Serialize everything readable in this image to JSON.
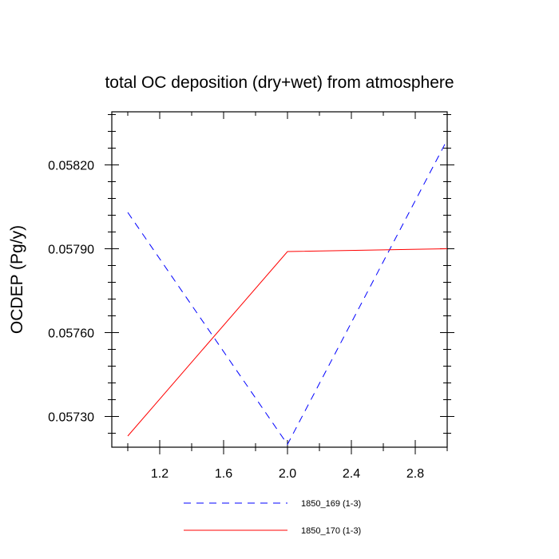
{
  "chart_data": {
    "type": "line",
    "title": "total OC deposition (dry+wet) from atmosphere",
    "xlabel": "",
    "ylabel": "OCDEP  (Pg/y)",
    "xlim": [
      0.9,
      3.0
    ],
    "ylim": [
      0.05719,
      0.05839
    ],
    "x_ticks": [
      1.2,
      1.6,
      2.0,
      2.4,
      2.8
    ],
    "x_tick_labels": [
      "1.2",
      "1.6",
      "2.0",
      "2.4",
      "2.8"
    ],
    "x_minor_ticks": [
      1.0,
      1.4,
      1.8,
      2.2,
      2.6,
      3.0
    ],
    "y_ticks": [
      0.0573,
      0.0576,
      0.0579,
      0.0582
    ],
    "y_tick_labels": [
      "0.05730",
      "0.05760",
      "0.05790",
      "0.05820"
    ],
    "y_minor_ticks": [
      0.05724,
      0.05736,
      0.05742,
      0.05748,
      0.05754,
      0.05766,
      0.05772,
      0.05778,
      0.05784,
      0.05796,
      0.05802,
      0.05808,
      0.05814,
      0.05826,
      0.05832,
      0.05838
    ],
    "grid": false,
    "legend_position": "bottom",
    "series": [
      {
        "name": "1850_169 (1-3)",
        "x": [
          1,
          2,
          3
        ],
        "y": [
          0.05803,
          0.0572,
          0.05829
        ],
        "color": "#0000ff",
        "dash": "dashed"
      },
      {
        "name": "1850_170 (1-3)",
        "x": [
          1,
          2,
          3
        ],
        "y": [
          0.05723,
          0.05789,
          0.0579
        ],
        "color": "#ff0000",
        "dash": "solid"
      }
    ]
  }
}
